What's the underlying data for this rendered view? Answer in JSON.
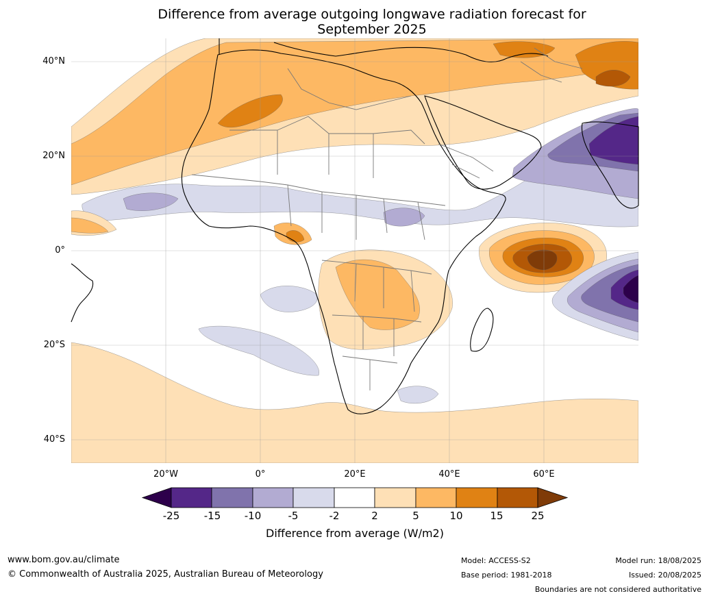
{
  "title": {
    "line1": "Difference from average outgoing longwave radiation forecast for",
    "line2": "September 2025"
  },
  "map": {
    "lat_labels": [
      "40°N",
      "20°N",
      "0°",
      "20°S",
      "40°S"
    ],
    "lon_labels": [
      "20°W",
      "0°",
      "20°E",
      "40°E",
      "60°E"
    ],
    "colors": {
      "neg25": "#2d004b",
      "neg15": "#542788",
      "neg10": "#8073ac",
      "neg5": "#b2abd2",
      "neg2": "#d8daeb",
      "zero": "#ffffff",
      "pos2": "#fee0b6",
      "pos5": "#fdb863",
      "pos10": "#e08214",
      "pos15": "#b35806",
      "pos25": "#7f3b08"
    }
  },
  "colorbar": {
    "ticks": [
      "-25",
      "-15",
      "-10",
      "-5",
      "-2",
      "2",
      "5",
      "10",
      "15",
      "25"
    ],
    "label": "Difference from average (W/m2)"
  },
  "footer": {
    "website": "www.bom.gov.au/climate",
    "copyright": "© Commonwealth of Australia 2025, Australian Bureau of Meteorology",
    "model": "Model: ACCESS-S2",
    "base_period": "Base period: 1981-2018",
    "model_run": "Model run: 18/08/2025",
    "issued": "Issued: 20/08/2025",
    "disclaimer": "Boundaries are not considered authoritative"
  }
}
